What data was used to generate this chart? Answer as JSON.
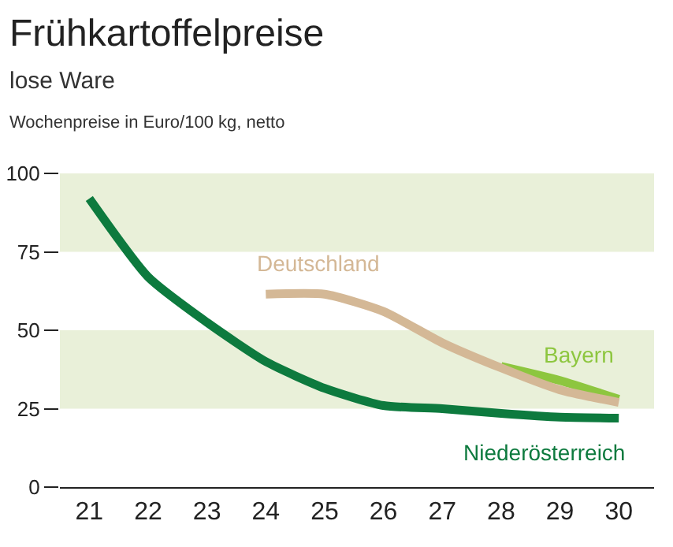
{
  "chart_data": {
    "type": "line",
    "title": "Frühkartoffelpreise",
    "subtitle": "lose Ware",
    "ylabel": "Wochenpreise in Euro/100 kg, netto",
    "x": [
      21,
      22,
      23,
      24,
      25,
      26,
      27,
      28,
      29,
      30
    ],
    "series": [
      {
        "name": "Niederösterreich",
        "color": "#0d7a3e",
        "values": [
          92,
          67,
          52.5,
          40,
          31.5,
          26,
          25,
          23.5,
          22.3,
          22
        ]
      },
      {
        "name": "Bayern",
        "color": "#8dc63f",
        "values": [
          null,
          null,
          null,
          null,
          null,
          null,
          null,
          38.5,
          34,
          28
        ]
      },
      {
        "name": "Deutschland",
        "color": "#d4b896",
        "values": [
          null,
          null,
          null,
          61.5,
          61.5,
          56,
          46,
          38,
          31,
          27
        ]
      }
    ],
    "xlim": [
      20.5,
      30.6
    ],
    "xticks": [
      21,
      22,
      23,
      24,
      25,
      26,
      27,
      28,
      29,
      30
    ],
    "ylim": [
      0,
      100
    ],
    "yticks": [
      0,
      25,
      50,
      75,
      100
    ],
    "bands": [
      {
        "axis": "y",
        "from": 25,
        "to": 50,
        "color": "#e9f0d9"
      },
      {
        "axis": "y",
        "from": 75,
        "to": 100,
        "color": "#e9f0d9"
      }
    ],
    "grid": false,
    "legend": false,
    "marker": "none",
    "line_style": "solid"
  }
}
